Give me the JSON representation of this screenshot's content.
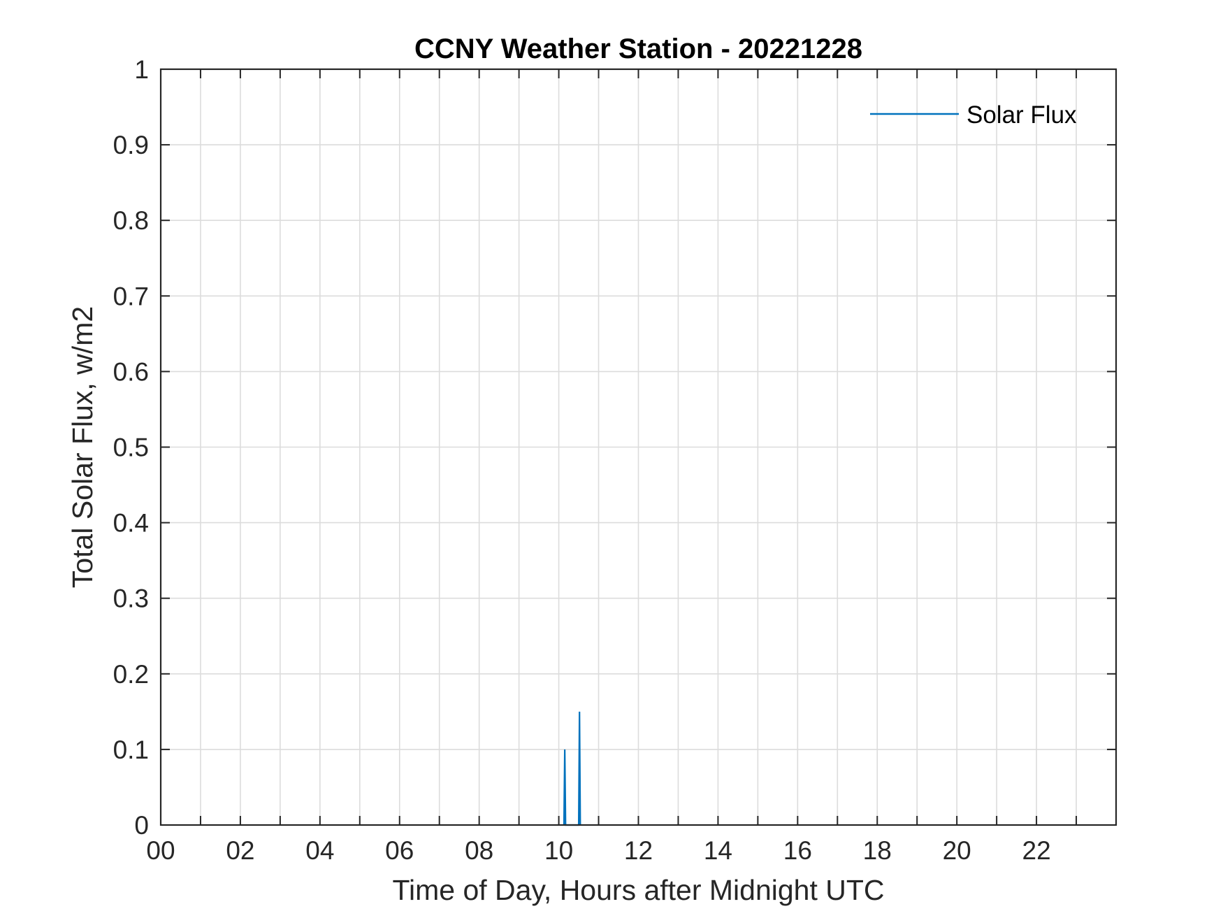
{
  "chart_data": {
    "type": "line",
    "title": "CCNY Weather Station - 20221228",
    "xlabel": "Time of Day, Hours after Midnight UTC",
    "ylabel": "Total Solar Flux, w/m2",
    "xlim": [
      0,
      24
    ],
    "ylim": [
      0,
      1
    ],
    "x_ticks": [
      0,
      2,
      4,
      6,
      8,
      10,
      12,
      14,
      16,
      18,
      20,
      22
    ],
    "x_tick_labels": [
      "00",
      "02",
      "04",
      "06",
      "08",
      "10",
      "12",
      "14",
      "16",
      "18",
      "20",
      "22"
    ],
    "x_minor_grid_step": 1,
    "y_ticks": [
      0,
      0.1,
      0.2,
      0.3,
      0.4,
      0.5,
      0.6,
      0.7,
      0.8,
      0.9,
      1
    ],
    "y_tick_labels": [
      "0",
      "0.1",
      "0.2",
      "0.3",
      "0.4",
      "0.5",
      "0.6",
      "0.7",
      "0.8",
      "0.9",
      "1"
    ],
    "grid": true,
    "legend_position": "top-right",
    "series": [
      {
        "name": "Solar Flux",
        "color": "#0072BD",
        "x": [
          10.13,
          10.15,
          10.17,
          10.5,
          10.52,
          10.54
        ],
        "y": [
          0,
          0.1,
          0,
          0,
          0.15,
          0
        ]
      }
    ]
  }
}
